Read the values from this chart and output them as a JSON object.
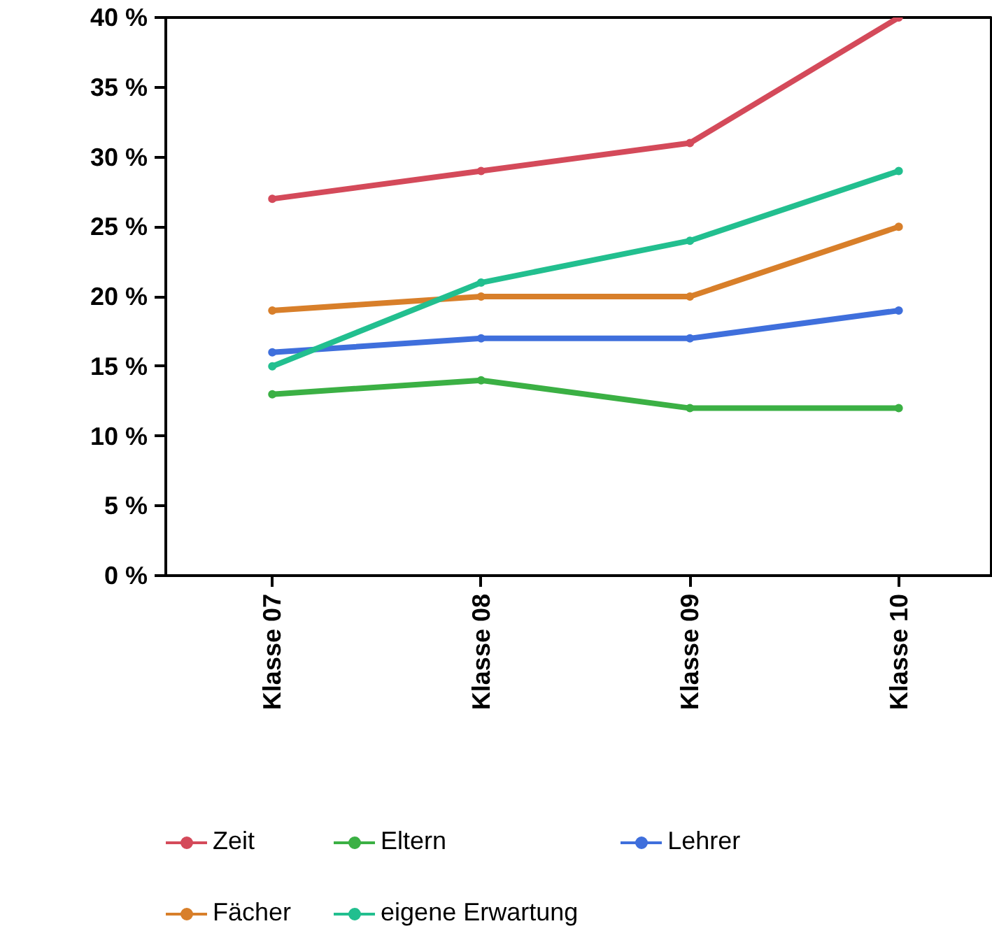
{
  "chart_data": {
    "type": "line",
    "categories": [
      "Klasse 07",
      "Klasse 08",
      "Klasse 09",
      "Klasse 10"
    ],
    "series": [
      {
        "name": "Zeit",
        "color": "#d44a5a",
        "values": [
          27,
          29,
          31,
          40
        ]
      },
      {
        "name": "Eltern",
        "color": "#3bb044",
        "values": [
          13,
          14,
          12,
          12
        ]
      },
      {
        "name": "Lehrer",
        "color": "#3f6fdc",
        "values": [
          16,
          17,
          17,
          19
        ]
      },
      {
        "name": "Fächer",
        "color": "#d87f2a",
        "values": [
          19,
          20,
          20,
          25
        ]
      },
      {
        "name": "eigene Erwartung",
        "color": "#22bf8f",
        "values": [
          15,
          21,
          24,
          29
        ]
      }
    ],
    "ylim": [
      0,
      40
    ],
    "yticks": [
      {
        "value": 0,
        "label": "0 %"
      },
      {
        "value": 5,
        "label": "5 %"
      },
      {
        "value": 10,
        "label": "10 %"
      },
      {
        "value": 15,
        "label": "15 %"
      },
      {
        "value": 20,
        "label": "20 %"
      },
      {
        "value": 25,
        "label": "25 %"
      },
      {
        "value": 30,
        "label": "30 %"
      },
      {
        "value": 35,
        "label": "35 %"
      },
      {
        "value": 40,
        "label": "40 %"
      }
    ],
    "grid": false,
    "legend": "bottom",
    "marker": "circle",
    "line_style": "solid"
  }
}
